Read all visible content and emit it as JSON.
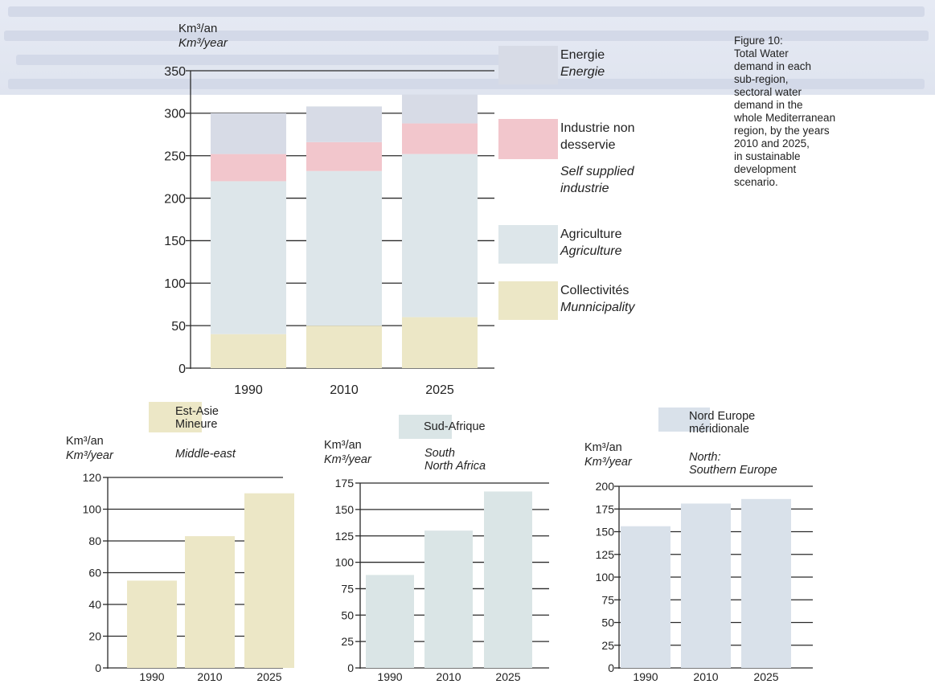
{
  "caption": {
    "lines": [
      "Figure 10:",
      "Total Water",
      "demand in each",
      "sub-region,",
      "sectoral water",
      "demand in the",
      "whole Mediterranean",
      "region, by the years",
      "2010 and 2025,",
      "in sustainable",
      "development",
      "scenario."
    ]
  },
  "colors": {
    "energie": "#d7dbe6",
    "industrie": "#f2c6cc",
    "agriculture": "#dde6ea",
    "collectivites": "#ece7c6",
    "est_asie": "#ece7c6",
    "sud_afrique": "#dae5e6",
    "nord_europe": "#d9e1ea"
  },
  "chart_data": [
    {
      "type": "bar",
      "stacked": true,
      "unit_label_fr": "Km³/an",
      "unit_label_en": "Km³/year",
      "categories": [
        "1990",
        "2010",
        "2025"
      ],
      "ylim": [
        0,
        350
      ],
      "yticks": [
        "0",
        "50",
        "100",
        "150",
        "200",
        "250",
        "300",
        "350"
      ],
      "series": [
        {
          "name": "Collectivités",
          "name_en": "Munnicipality",
          "values": [
            40,
            50,
            60
          ]
        },
        {
          "name": "Agriculture",
          "name_en": "Agriculture",
          "values": [
            180,
            182,
            192
          ]
        },
        {
          "name": "Industrie non desservie",
          "name_en": "Self supplied industrie",
          "values": [
            32,
            34,
            36
          ]
        },
        {
          "name": "Energie",
          "name_en": "Energie",
          "values": [
            48,
            42,
            34
          ]
        }
      ],
      "legend": {
        "energie": [
          "Energie",
          "Energie"
        ],
        "industrie": [
          "Industrie non",
          "desservie",
          "Self supplied",
          "industrie"
        ],
        "agriculture": [
          "Agriculture",
          "Agriculture"
        ],
        "collectivites": [
          "Collectivités",
          "Munnicipality"
        ]
      }
    },
    {
      "type": "bar",
      "unit_label_fr": "Km³/an",
      "unit_label_en": "Km³/year",
      "region_fr": [
        "Est-Asie",
        "Mineure"
      ],
      "region_en": [
        "Middle-east"
      ],
      "categories": [
        "1990",
        "2010",
        "2025"
      ],
      "values": [
        55,
        83,
        110
      ],
      "ylim": [
        0,
        120
      ],
      "yticks": [
        "0",
        "20",
        "40",
        "60",
        "80",
        "100",
        "120"
      ]
    },
    {
      "type": "bar",
      "unit_label_fr": "Km³/an",
      "unit_label_en": "Km³/year",
      "region_fr": [
        "Sud-Afrique"
      ],
      "region_en": [
        "South",
        "North Africa"
      ],
      "categories": [
        "1990",
        "2010",
        "2025"
      ],
      "values": [
        88,
        130,
        167
      ],
      "ylim": [
        0,
        175
      ],
      "yticks": [
        "0",
        "25",
        "50",
        "75",
        "100",
        "125",
        "150",
        "175"
      ]
    },
    {
      "type": "bar",
      "unit_label_fr": "Km³/an",
      "unit_label_en": "Km³/year",
      "region_fr": [
        "Nord Europe",
        "méridionale"
      ],
      "region_en": [
        "North:",
        "Southern Europe"
      ],
      "categories": [
        "1990",
        "2010",
        "2025"
      ],
      "values": [
        156,
        181,
        186
      ],
      "ylim": [
        0,
        200
      ],
      "yticks": [
        "0",
        "25",
        "50",
        "75",
        "100",
        "125",
        "150",
        "175",
        "200"
      ]
    }
  ]
}
